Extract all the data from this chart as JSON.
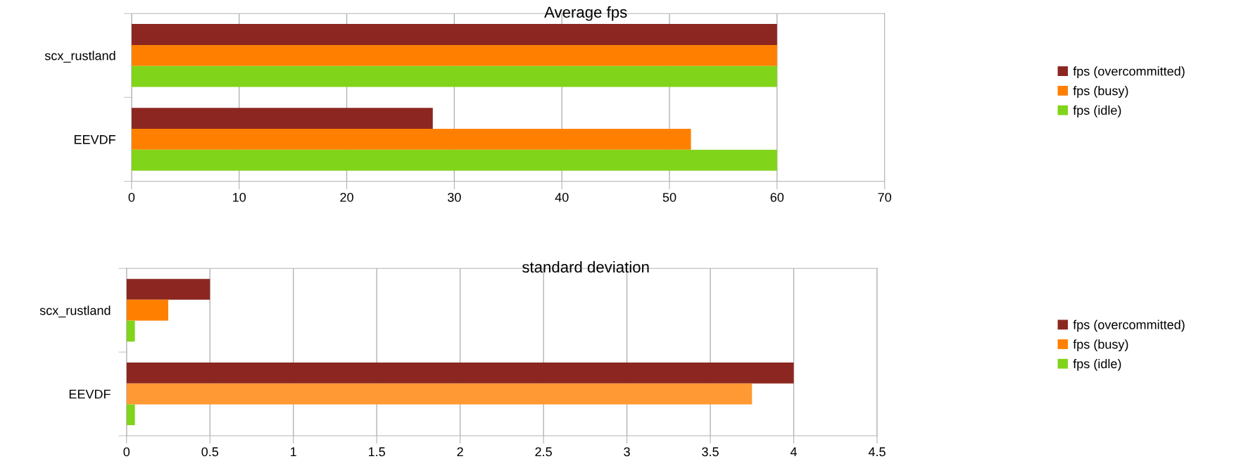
{
  "chart_data": [
    {
      "type": "bar",
      "orientation": "horizontal",
      "title": "Average fps",
      "categories": [
        "scx_rustland",
        "EEVDF"
      ],
      "series": [
        {
          "name": "fps (overcommitted)",
          "color": "#8b2720",
          "values": [
            60,
            28
          ]
        },
        {
          "name": "fps (busy)",
          "color": "#ff8000",
          "values": [
            60,
            52
          ]
        },
        {
          "name": "fps (idle)",
          "color": "#80d41a",
          "values": [
            60,
            60
          ]
        }
      ],
      "xlim": [
        0,
        70
      ],
      "xticks": [
        0,
        10,
        20,
        30,
        40,
        50,
        60,
        70
      ],
      "grid": "x",
      "legend": "right"
    },
    {
      "type": "bar",
      "orientation": "horizontal",
      "title": "standard deviation",
      "categories": [
        "scx_rustland",
        "EEVDF"
      ],
      "series": [
        {
          "name": "fps (overcommitted)",
          "color": "#8b2720",
          "values": [
            0.5,
            4
          ]
        },
        {
          "name": "fps (busy)",
          "color": "#ff8000",
          "colors": [
            "#ff8000",
            "#ff9933"
          ],
          "values": [
            0.25,
            3.75
          ]
        },
        {
          "name": "fps (idle)",
          "color": "#80d41a",
          "values": [
            0.05,
            0.05
          ]
        }
      ],
      "xlim": [
        0,
        4.5
      ],
      "xticks": [
        0,
        0.5,
        1,
        1.5,
        2,
        2.5,
        3,
        3.5,
        4,
        4.5
      ],
      "grid": "x",
      "legend": "right"
    }
  ]
}
